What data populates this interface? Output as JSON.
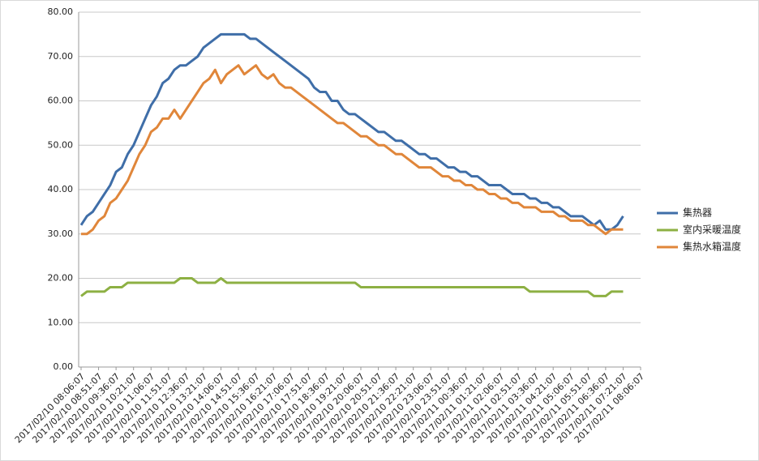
{
  "chart_data": {
    "type": "line",
    "categories": [
      "2017/02/10 08:06:07",
      null,
      null,
      "2017/02/10 08:51:07",
      null,
      null,
      "2017/02/10 09:36:07",
      null,
      null,
      "2017/02/10 10:21:07",
      null,
      null,
      "2017/02/10 11:06:07",
      null,
      null,
      "2017/02/10 11:51:07",
      null,
      null,
      "2017/02/10 12:36:07",
      null,
      null,
      "2017/02/10 13:21:07",
      null,
      null,
      "2017/02/10 14:06:07",
      null,
      null,
      "2017/02/10 14:51:07",
      null,
      null,
      "2017/02/10 15:36:07",
      null,
      null,
      "2017/02/10 16:21:07",
      null,
      null,
      "2017/02/10 17:06:07",
      null,
      null,
      "2017/02/10 17:51:07",
      null,
      null,
      "2017/02/10 18:36:07",
      null,
      null,
      "2017/02/10 19:21:07",
      null,
      null,
      "2017/02/10 20:06:07",
      null,
      null,
      "2017/02/10 20:51:07",
      null,
      null,
      "2017/02/10 21:36:07",
      null,
      null,
      "2017/02/10 22:21:07",
      null,
      null,
      "2017/02/10 23:06:07",
      null,
      null,
      "2017/02/10 23:51:07",
      null,
      null,
      "2017/02/11 00:36:07",
      null,
      null,
      "2017/02/11 01:21:07",
      null,
      null,
      "2017/02/11 02:06:07",
      null,
      null,
      "2017/02/11 02:51:07",
      null,
      null,
      "2017/02/11 03:36:07",
      null,
      null,
      "2017/02/11 04:21:07",
      null,
      null,
      "2017/02/11 05:06:07",
      null,
      null,
      "2017/02/11 05:51:07",
      null,
      null,
      "2017/02/11 06:36:07",
      null,
      null,
      "2017/02/11 07:21:07",
      null,
      null,
      "2017/02/11 08:06:07"
    ],
    "series": [
      {
        "name": "集热器",
        "color": "#3f6ea8",
        "values": [
          32,
          34,
          35,
          37,
          39,
          41,
          44,
          45,
          48,
          50,
          53,
          56,
          59,
          61,
          64,
          65,
          67,
          68,
          68,
          69,
          70,
          72,
          73,
          74,
          75,
          75,
          75,
          75,
          75,
          74,
          74,
          73,
          72,
          71,
          70,
          69,
          68,
          67,
          66,
          65,
          63,
          62,
          62,
          60,
          60,
          58,
          57,
          57,
          56,
          55,
          54,
          53,
          53,
          52,
          51,
          51,
          50,
          49,
          48,
          48,
          47,
          47,
          46,
          45,
          45,
          44,
          44,
          43,
          43,
          42,
          41,
          41,
          41,
          40,
          39,
          39,
          39,
          38,
          38,
          37,
          37,
          36,
          36,
          35,
          34,
          34,
          34,
          33,
          32,
          33,
          31,
          31,
          32,
          34,
          null,
          null,
          null
        ]
      },
      {
        "name": "室内采暖温度",
        "color": "#8db043",
        "values": [
          16,
          17,
          17,
          17,
          17,
          18,
          18,
          18,
          19,
          19,
          19,
          19,
          19,
          19,
          19,
          19,
          19,
          20,
          20,
          20,
          19,
          19,
          19,
          19,
          20,
          19,
          19,
          19,
          19,
          19,
          19,
          19,
          19,
          19,
          19,
          19,
          19,
          19,
          19,
          19,
          19,
          19,
          19,
          19,
          19,
          19,
          19,
          19,
          18,
          18,
          18,
          18,
          18,
          18,
          18,
          18,
          18,
          18,
          18,
          18,
          18,
          18,
          18,
          18,
          18,
          18,
          18,
          18,
          18,
          18,
          18,
          18,
          18,
          18,
          18,
          18,
          18,
          17,
          17,
          17,
          17,
          17,
          17,
          17,
          17,
          17,
          17,
          17,
          16,
          16,
          16,
          17,
          17,
          17,
          null,
          null,
          null
        ]
      },
      {
        "name": "集热水箱温度",
        "color": "#e0863a",
        "values": [
          30,
          30,
          31,
          33,
          34,
          37,
          38,
          40,
          42,
          45,
          48,
          50,
          53,
          54,
          56,
          56,
          58,
          56,
          58,
          60,
          62,
          64,
          65,
          67,
          64,
          66,
          67,
          68,
          66,
          67,
          68,
          66,
          65,
          66,
          64,
          63,
          63,
          62,
          61,
          60,
          59,
          58,
          57,
          56,
          55,
          55,
          54,
          53,
          52,
          52,
          51,
          50,
          50,
          49,
          48,
          48,
          47,
          46,
          45,
          45,
          45,
          44,
          43,
          43,
          42,
          42,
          41,
          41,
          40,
          40,
          39,
          39,
          38,
          38,
          37,
          37,
          36,
          36,
          36,
          35,
          35,
          35,
          34,
          34,
          33,
          33,
          33,
          32,
          32,
          31,
          30,
          31,
          31,
          31,
          null,
          null,
          null
        ]
      }
    ],
    "ylim": [
      0,
      80
    ],
    "yticks": [
      {
        "value": 0,
        "label": "0.00"
      },
      {
        "value": 10,
        "label": "10.00"
      },
      {
        "value": 20,
        "label": "20.00"
      },
      {
        "value": 30,
        "label": "30.00"
      },
      {
        "value": 40,
        "label": "40.00"
      },
      {
        "value": 50,
        "label": "50.00"
      },
      {
        "value": 60,
        "label": "60.00"
      },
      {
        "value": 70,
        "label": "70.00"
      },
      {
        "value": 80,
        "label": "80.00"
      }
    ],
    "grid": true,
    "legend": "right"
  }
}
